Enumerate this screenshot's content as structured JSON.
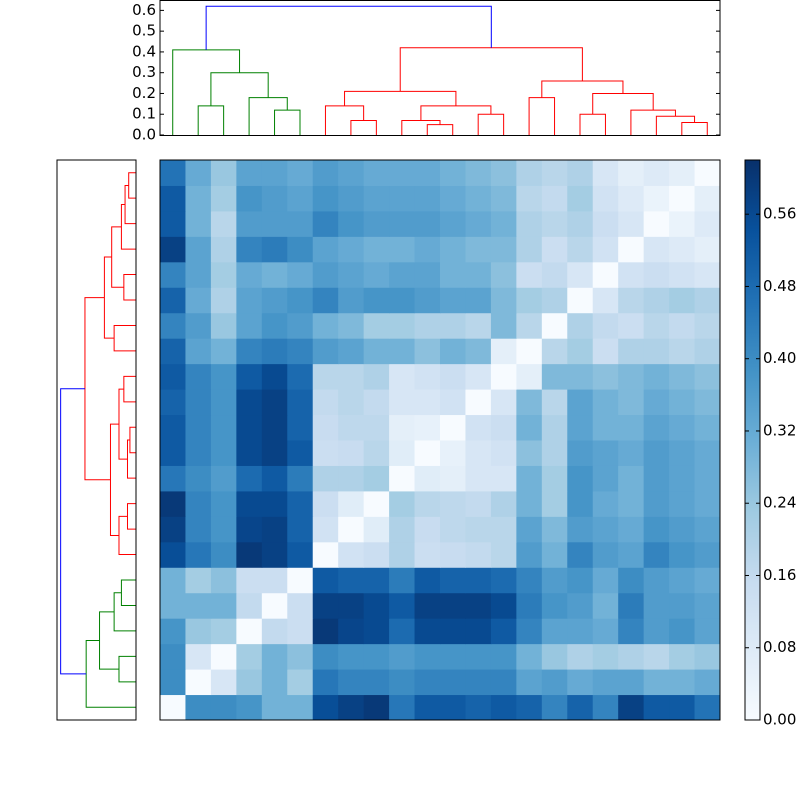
{
  "chart_data": {
    "type": "clustermap",
    "matrix": [
      [
        0,
        0.4,
        0.4,
        0.38,
        0.3,
        0.3,
        0.55,
        0.58,
        0.6,
        0.45,
        0.52,
        0.52,
        0.5,
        0.52,
        0.5,
        0.42,
        0.5,
        0.42,
        0.58,
        0.52,
        0.52,
        0.46
      ],
      [
        0.4,
        0,
        0.1,
        0.24,
        0.3,
        0.22,
        0.45,
        0.42,
        0.42,
        0.4,
        0.42,
        0.42,
        0.42,
        0.42,
        0.34,
        0.36,
        0.32,
        0.34,
        0.34,
        0.3,
        0.3,
        0.32
      ],
      [
        0.4,
        0.1,
        0,
        0.22,
        0.3,
        0.26,
        0.4,
        0.38,
        0.38,
        0.36,
        0.38,
        0.38,
        0.38,
        0.38,
        0.3,
        0.24,
        0.2,
        0.22,
        0.2,
        0.18,
        0.22,
        0.24
      ],
      [
        0.38,
        0.24,
        0.22,
        0,
        0.16,
        0.14,
        0.6,
        0.57,
        0.56,
        0.48,
        0.56,
        0.56,
        0.56,
        0.52,
        0.42,
        0.34,
        0.34,
        0.32,
        0.42,
        0.36,
        0.38,
        0.34
      ],
      [
        0.3,
        0.3,
        0.3,
        0.16,
        0,
        0.14,
        0.58,
        0.58,
        0.56,
        0.52,
        0.58,
        0.58,
        0.58,
        0.56,
        0.44,
        0.38,
        0.36,
        0.3,
        0.44,
        0.36,
        0.36,
        0.34
      ],
      [
        0.3,
        0.22,
        0.26,
        0.14,
        0.14,
        0,
        0.52,
        0.5,
        0.5,
        0.44,
        0.52,
        0.5,
        0.5,
        0.48,
        0.42,
        0.36,
        0.38,
        0.32,
        0.4,
        0.36,
        0.34,
        0.32
      ],
      [
        0.55,
        0.45,
        0.4,
        0.6,
        0.58,
        0.52,
        0,
        0.12,
        0.14,
        0.2,
        0.14,
        0.15,
        0.16,
        0.18,
        0.36,
        0.3,
        0.42,
        0.36,
        0.34,
        0.42,
        0.38,
        0.36
      ],
      [
        0.58,
        0.42,
        0.38,
        0.57,
        0.58,
        0.5,
        0.12,
        0,
        0.07,
        0.2,
        0.15,
        0.17,
        0.18,
        0.18,
        0.34,
        0.28,
        0.36,
        0.34,
        0.32,
        0.38,
        0.36,
        0.34
      ],
      [
        0.6,
        0.42,
        0.38,
        0.56,
        0.56,
        0.5,
        0.14,
        0.07,
        0,
        0.22,
        0.18,
        0.17,
        0.16,
        0.2,
        0.3,
        0.22,
        0.38,
        0.32,
        0.3,
        0.36,
        0.34,
        0.32
      ],
      [
        0.45,
        0.4,
        0.36,
        0.48,
        0.52,
        0.44,
        0.2,
        0.2,
        0.22,
        0,
        0.07,
        0.06,
        0.1,
        0.1,
        0.3,
        0.22,
        0.38,
        0.34,
        0.3,
        0.36,
        0.34,
        0.32
      ],
      [
        0.52,
        0.42,
        0.38,
        0.56,
        0.58,
        0.52,
        0.14,
        0.15,
        0.18,
        0.07,
        0,
        0.05,
        0.1,
        0.12,
        0.26,
        0.2,
        0.36,
        0.34,
        0.32,
        0.36,
        0.34,
        0.32
      ],
      [
        0.52,
        0.42,
        0.38,
        0.56,
        0.58,
        0.5,
        0.15,
        0.17,
        0.17,
        0.06,
        0.05,
        0,
        0.12,
        0.14,
        0.3,
        0.2,
        0.34,
        0.3,
        0.3,
        0.34,
        0.32,
        0.3
      ],
      [
        0.5,
        0.42,
        0.38,
        0.56,
        0.58,
        0.5,
        0.16,
        0.18,
        0.16,
        0.1,
        0.1,
        0.12,
        0,
        0.1,
        0.28,
        0.18,
        0.34,
        0.3,
        0.28,
        0.32,
        0.3,
        0.28
      ],
      [
        0.52,
        0.42,
        0.38,
        0.52,
        0.56,
        0.48,
        0.18,
        0.18,
        0.2,
        0.1,
        0.12,
        0.14,
        0.1,
        0,
        0.06,
        0.28,
        0.28,
        0.26,
        0.28,
        0.3,
        0.28,
        0.26
      ],
      [
        0.5,
        0.34,
        0.3,
        0.42,
        0.44,
        0.42,
        0.36,
        0.34,
        0.3,
        0.3,
        0.26,
        0.3,
        0.28,
        0.06,
        0,
        0.18,
        0.22,
        0.14,
        0.2,
        0.2,
        0.18,
        0.2
      ],
      [
        0.42,
        0.36,
        0.24,
        0.34,
        0.38,
        0.36,
        0.3,
        0.28,
        0.22,
        0.22,
        0.2,
        0.2,
        0.18,
        0.28,
        0.18,
        0,
        0.2,
        0.16,
        0.14,
        0.18,
        0.16,
        0.18
      ],
      [
        0.5,
        0.32,
        0.2,
        0.34,
        0.36,
        0.38,
        0.42,
        0.36,
        0.38,
        0.38,
        0.36,
        0.34,
        0.34,
        0.28,
        0.22,
        0.2,
        0,
        0.1,
        0.18,
        0.2,
        0.22,
        0.2
      ],
      [
        0.42,
        0.34,
        0.22,
        0.32,
        0.3,
        0.32,
        0.36,
        0.34,
        0.32,
        0.34,
        0.34,
        0.3,
        0.3,
        0.26,
        0.14,
        0.16,
        0.1,
        0,
        0.12,
        0.14,
        0.12,
        0.1
      ],
      [
        0.58,
        0.34,
        0.2,
        0.42,
        0.44,
        0.4,
        0.34,
        0.32,
        0.3,
        0.3,
        0.32,
        0.3,
        0.28,
        0.28,
        0.2,
        0.14,
        0.18,
        0.12,
        0,
        0.1,
        0.08,
        0.06
      ],
      [
        0.52,
        0.3,
        0.18,
        0.36,
        0.36,
        0.36,
        0.42,
        0.38,
        0.36,
        0.36,
        0.36,
        0.34,
        0.32,
        0.3,
        0.2,
        0.18,
        0.2,
        0.14,
        0.1,
        0,
        0.04,
        0.08
      ],
      [
        0.52,
        0.3,
        0.22,
        0.38,
        0.36,
        0.34,
        0.38,
        0.36,
        0.34,
        0.34,
        0.34,
        0.32,
        0.3,
        0.28,
        0.18,
        0.16,
        0.22,
        0.12,
        0.08,
        0.04,
        0,
        0.06
      ],
      [
        0.46,
        0.32,
        0.24,
        0.34,
        0.34,
        0.32,
        0.36,
        0.34,
        0.32,
        0.32,
        0.32,
        0.3,
        0.28,
        0.26,
        0.2,
        0.18,
        0.2,
        0.1,
        0.06,
        0.08,
        0.06,
        0
      ]
    ],
    "colormap": [
      "#f7fbff",
      "#deebf7",
      "#c6dbef",
      "#9ecae1",
      "#6baed6",
      "#4292c6",
      "#2171b5",
      "#08519c",
      "#08306b"
    ],
    "clim": [
      0,
      0.62
    ],
    "colorbar_ticks": [
      {
        "value": 0,
        "label": "0.00"
      },
      0.08,
      0.16,
      0.24,
      0.32,
      {
        "value": 0.4,
        "label": "0.40"
      },
      0.48,
      0.56
    ],
    "dendrogram": {
      "ylim": [
        0,
        0.65
      ],
      "yticks": [
        {
          "value": 0,
          "label": "0.0"
        },
        0.1,
        0.2,
        0.3,
        0.4,
        0.5,
        0.6
      ],
      "links": [
        {
          "children": [
            1,
            2
          ],
          "height": 0.14,
          "color": "#008000"
        },
        {
          "children": [
            4,
            5
          ],
          "height": 0.12,
          "color": "#008000"
        },
        {
          "children": [
            3,
            23
          ],
          "height": 0.18,
          "color": "#008000"
        },
        {
          "children": [
            22,
            24
          ],
          "height": 0.3,
          "color": "#008000"
        },
        {
          "children": [
            0,
            25
          ],
          "height": 0.41,
          "color": "#008000"
        },
        {
          "children": [
            7,
            8
          ],
          "height": 0.07,
          "color": "#ff0000"
        },
        {
          "children": [
            6,
            27
          ],
          "height": 0.14,
          "color": "#ff0000"
        },
        {
          "children": [
            10,
            11
          ],
          "height": 0.05,
          "color": "#ff0000"
        },
        {
          "children": [
            9,
            29
          ],
          "height": 0.07,
          "color": "#ff0000"
        },
        {
          "children": [
            12,
            13
          ],
          "height": 0.1,
          "color": "#ff0000"
        },
        {
          "children": [
            30,
            31
          ],
          "height": 0.14,
          "color": "#ff0000"
        },
        {
          "children": [
            28,
            32
          ],
          "height": 0.21,
          "color": "#ff0000"
        },
        {
          "children": [
            14,
            15
          ],
          "height": 0.18,
          "color": "#ff0000"
        },
        {
          "children": [
            16,
            17
          ],
          "height": 0.1,
          "color": "#ff0000"
        },
        {
          "children": [
            20,
            21
          ],
          "height": 0.06,
          "color": "#ff0000"
        },
        {
          "children": [
            19,
            36
          ],
          "height": 0.09,
          "color": "#ff0000"
        },
        {
          "children": [
            18,
            37
          ],
          "height": 0.12,
          "color": "#ff0000"
        },
        {
          "children": [
            35,
            38
          ],
          "height": 0.2,
          "color": "#ff0000"
        },
        {
          "children": [
            34,
            39
          ],
          "height": 0.26,
          "color": "#ff0000"
        },
        {
          "children": [
            33,
            40
          ],
          "height": 0.42,
          "color": "#ff0000"
        },
        {
          "children": [
            26,
            41
          ],
          "height": 0.62,
          "color": "#0000ff"
        }
      ]
    }
  }
}
